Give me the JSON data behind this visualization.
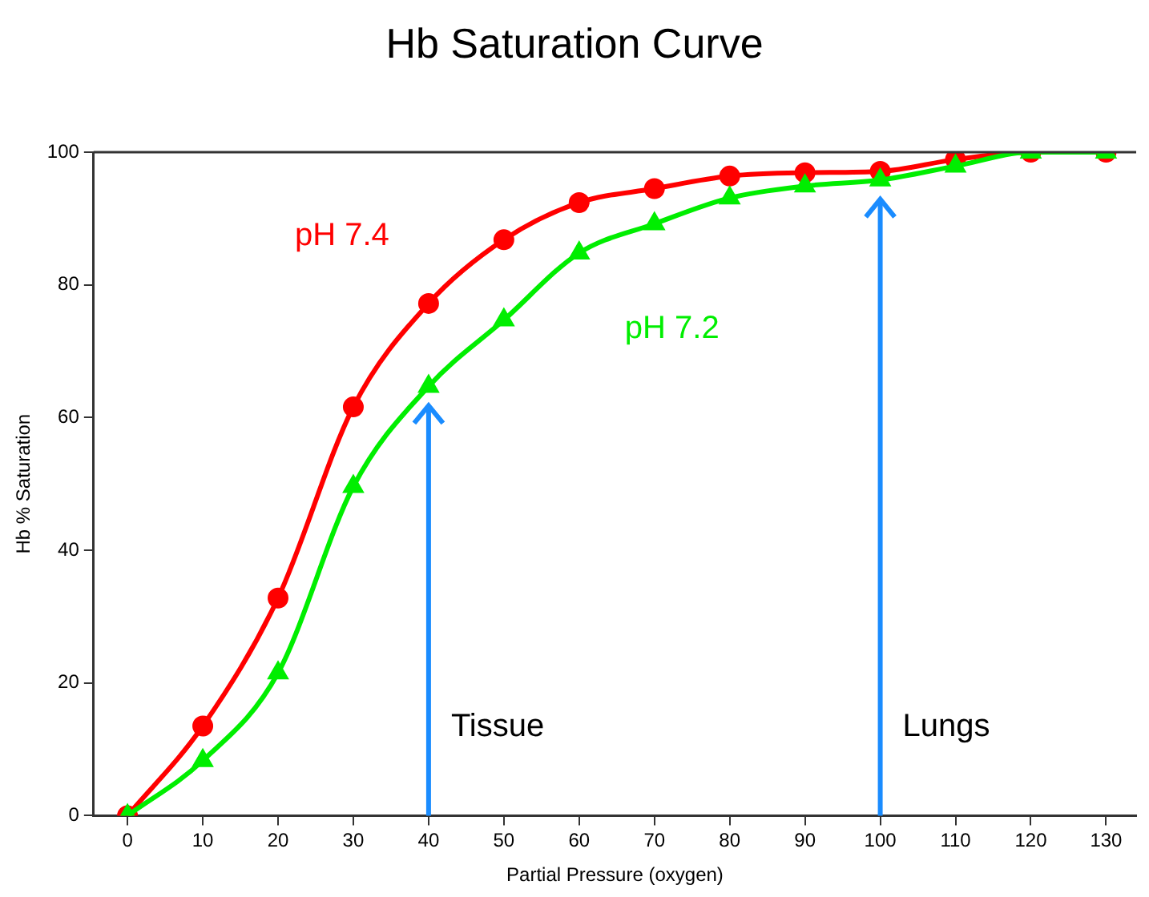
{
  "chart_data": {
    "type": "line",
    "title": "Hb Saturation Curve",
    "xlabel": "Partial Pressure (oxygen)",
    "ylabel": "Hb % Saturation",
    "x": [
      0,
      10,
      20,
      30,
      40,
      50,
      60,
      70,
      80,
      90,
      100,
      110,
      120,
      130
    ],
    "series": [
      {
        "name": "pH 7.4",
        "color": "#ff0000",
        "marker": "circle",
        "values": [
          0,
          13.5,
          32.8,
          61.6,
          77.2,
          86.8,
          92.4,
          94.5,
          96.4,
          96.9,
          97.1,
          98.9,
          100,
          100
        ]
      },
      {
        "name": "pH 7.2",
        "color": "#00ee00",
        "marker": "triangle",
        "values": [
          0,
          8.3,
          21.5,
          49.6,
          64.7,
          74.7,
          84.8,
          89.2,
          93.1,
          94.9,
          95.8,
          97.9,
          100,
          100
        ]
      }
    ],
    "ref_lines": [
      {
        "axis": "x",
        "value": 40,
        "label": "Tissue",
        "color": "#1a8cff"
      },
      {
        "axis": "x",
        "value": 100,
        "label": "Lungs",
        "color": "#1a8cff"
      }
    ],
    "xlim": [
      -4.5,
      134
    ],
    "ylim": [
      0,
      100
    ],
    "xticks": [
      0,
      10,
      20,
      30,
      40,
      50,
      60,
      70,
      80,
      90,
      100,
      110,
      120,
      130
    ],
    "yticks": [
      0,
      20,
      40,
      60,
      80,
      100
    ],
    "grid": false,
    "legend": false,
    "line_style": "solid"
  }
}
